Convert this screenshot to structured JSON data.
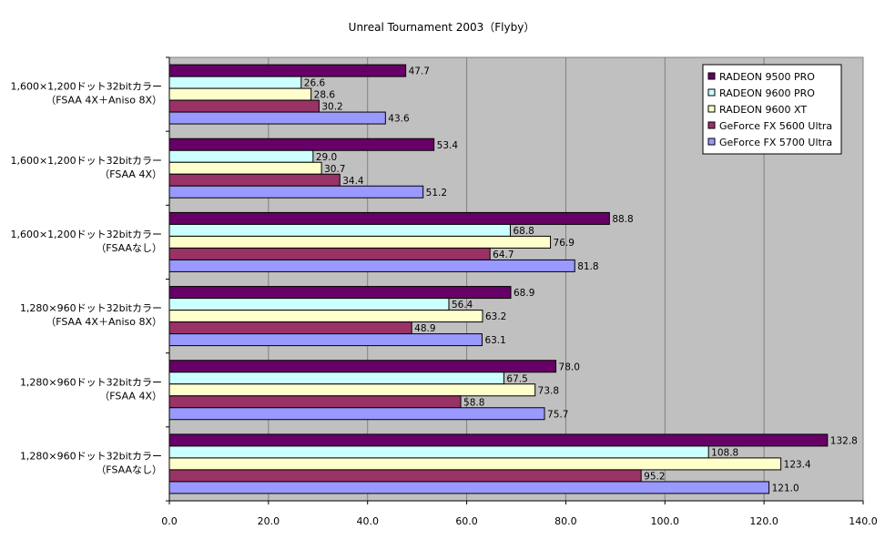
{
  "chart_data": {
    "type": "bar",
    "orientation": "horizontal",
    "title": "Unreal Tournament 2003（Flyby）",
    "xlabel": "",
    "ylabel": "",
    "xlim": [
      0,
      140
    ],
    "xticks": [
      "0.0",
      "20.0",
      "40.0",
      "60.0",
      "80.0",
      "100.0",
      "120.0",
      "140.0"
    ],
    "grid": true,
    "legend_position": "top-right",
    "categories": [
      [
        "1,600×1,200ドット32bitカラー",
        "（FSAA 4X＋Aniso 8X）"
      ],
      [
        "1,600×1,200ドット32bitカラー",
        "（FSAA 4X）"
      ],
      [
        "1,600×1,200ドット32bitカラー",
        "（FSAAなし）"
      ],
      [
        "1,280×960ドット32bitカラー",
        "（FSAA 4X＋Aniso 8X）"
      ],
      [
        "1,280×960ドット32bitカラー",
        "（FSAA 4X）"
      ],
      [
        "1,280×960ドット32bitカラー",
        "（FSAAなし）"
      ]
    ],
    "series": [
      {
        "name": "RADEON 9500 PRO",
        "color": "#660066",
        "values": [
          47.7,
          53.4,
          88.8,
          68.9,
          78.0,
          132.8
        ],
        "labels": [
          "47.7",
          "53.4",
          "88.8",
          "68.9",
          "78.0",
          "132.8"
        ]
      },
      {
        "name": "RADEON 9600 PRO",
        "color": "#ccffff",
        "values": [
          26.6,
          29.0,
          68.8,
          56.4,
          67.5,
          108.8
        ],
        "labels": [
          "26.6",
          "29.0",
          "68.8",
          "56.4",
          "67.5",
          "108.8"
        ]
      },
      {
        "name": "RADEON 9600 XT",
        "color": "#ffffcc",
        "values": [
          28.6,
          30.7,
          76.9,
          63.2,
          73.8,
          123.4
        ],
        "labels": [
          "28.6",
          "30.7",
          "76.9",
          "63.2",
          "73.8",
          "123.4"
        ]
      },
      {
        "name": "GeForce FX 5600 Ultra",
        "color": "#993366",
        "values": [
          30.2,
          34.4,
          64.7,
          48.9,
          58.8,
          95.2
        ],
        "labels": [
          "30.2",
          "34.4",
          "64.7",
          "48.9",
          "58.8",
          "95.2"
        ]
      },
      {
        "name": "GeForce FX 5700 Ultra",
        "color": "#9999ff",
        "values": [
          43.6,
          51.2,
          81.8,
          63.1,
          75.7,
          121.0
        ],
        "labels": [
          "43.6",
          "51.2",
          "81.8",
          "63.1",
          "75.7",
          "121.0"
        ]
      }
    ]
  },
  "colors": {
    "plot_background": "#c0c0c0",
    "gridline": "#808080",
    "bar_stroke": "#000000"
  }
}
